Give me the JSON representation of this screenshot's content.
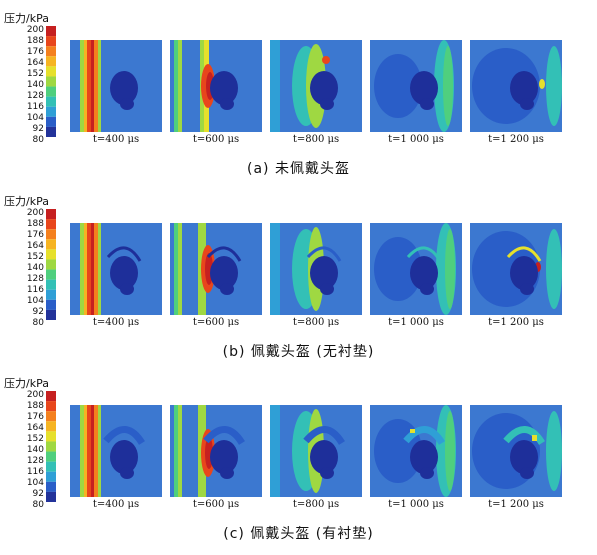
{
  "scale": {
    "title": "压力/kPa",
    "ticks": [
      "200",
      "188",
      "176",
      "164",
      "152",
      "140",
      "128",
      "116",
      "104",
      "92",
      "80"
    ],
    "colors": [
      "#c62020",
      "#e8461c",
      "#f4801e",
      "#f6b422",
      "#e6e02c",
      "#9fd842",
      "#4fcf7e",
      "#33c0b6",
      "#2f9fd6",
      "#2a5ec8",
      "#23339a"
    ]
  },
  "rows": [
    {
      "caption": "(a)  未佩戴头盔",
      "times": [
        "t=400 μs",
        "t=600 μs",
        "t=800 μs",
        "t=1 000 μs",
        "t=1 200 μs"
      ]
    },
    {
      "caption": "(b)  佩戴头盔 (无衬垫)",
      "times": [
        "t=400 μs",
        "t=600 μs",
        "t=800 μs",
        "t=1 000 μs",
        "t=1 200 μs"
      ]
    },
    {
      "caption": "(c)  佩戴头盔 (有衬垫)",
      "times": [
        "t=400 μs",
        "t=600 μs",
        "t=800 μs",
        "t=1 000 μs",
        "t=1 200 μs"
      ]
    }
  ]
}
